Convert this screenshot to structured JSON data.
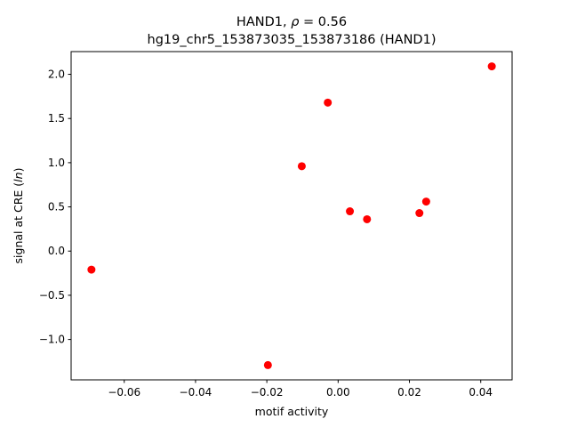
{
  "chart_data": {
    "type": "scatter",
    "title_prefix": "HAND1, ",
    "title_rho_symbol": "ρ",
    "title_rho_suffix": " = 0.56",
    "subtitle": "hg19_chr5_153873035_153873186 (HAND1)",
    "xlabel": "motif activity",
    "ylabel_prefix": "signal at CRE (",
    "ylabel_italic": "ln",
    "ylabel_suffix": ")",
    "xlim": [
      -0.0749,
      0.0488
    ],
    "ylim": [
      -1.457,
      2.257
    ],
    "x_ticks": [
      {
        "value": -0.06,
        "label": "−0.06"
      },
      {
        "value": -0.04,
        "label": "−0.04"
      },
      {
        "value": -0.02,
        "label": "−0.02"
      },
      {
        "value": 0.0,
        "label": "0.00"
      },
      {
        "value": 0.02,
        "label": "0.02"
      },
      {
        "value": 0.04,
        "label": "0.04"
      }
    ],
    "y_ticks": [
      {
        "value": -1.0,
        "label": "−1.0"
      },
      {
        "value": -0.5,
        "label": "−0.5"
      },
      {
        "value": 0.0,
        "label": "0.0"
      },
      {
        "value": 0.5,
        "label": "0.5"
      },
      {
        "value": 1.0,
        "label": "1.0"
      },
      {
        "value": 1.5,
        "label": "1.5"
      },
      {
        "value": 2.0,
        "label": "2.0"
      }
    ],
    "points": [
      {
        "x": -0.0692,
        "y": -0.21
      },
      {
        "x": -0.0197,
        "y": -1.29
      },
      {
        "x": -0.0102,
        "y": 0.96
      },
      {
        "x": -0.0029,
        "y": 1.68
      },
      {
        "x": 0.0033,
        "y": 0.45
      },
      {
        "x": 0.0081,
        "y": 0.36
      },
      {
        "x": 0.0228,
        "y": 0.43
      },
      {
        "x": 0.0247,
        "y": 0.56
      },
      {
        "x": 0.0431,
        "y": 2.09
      }
    ],
    "point_color": "#ff0000",
    "grid": false,
    "legend": "none"
  }
}
